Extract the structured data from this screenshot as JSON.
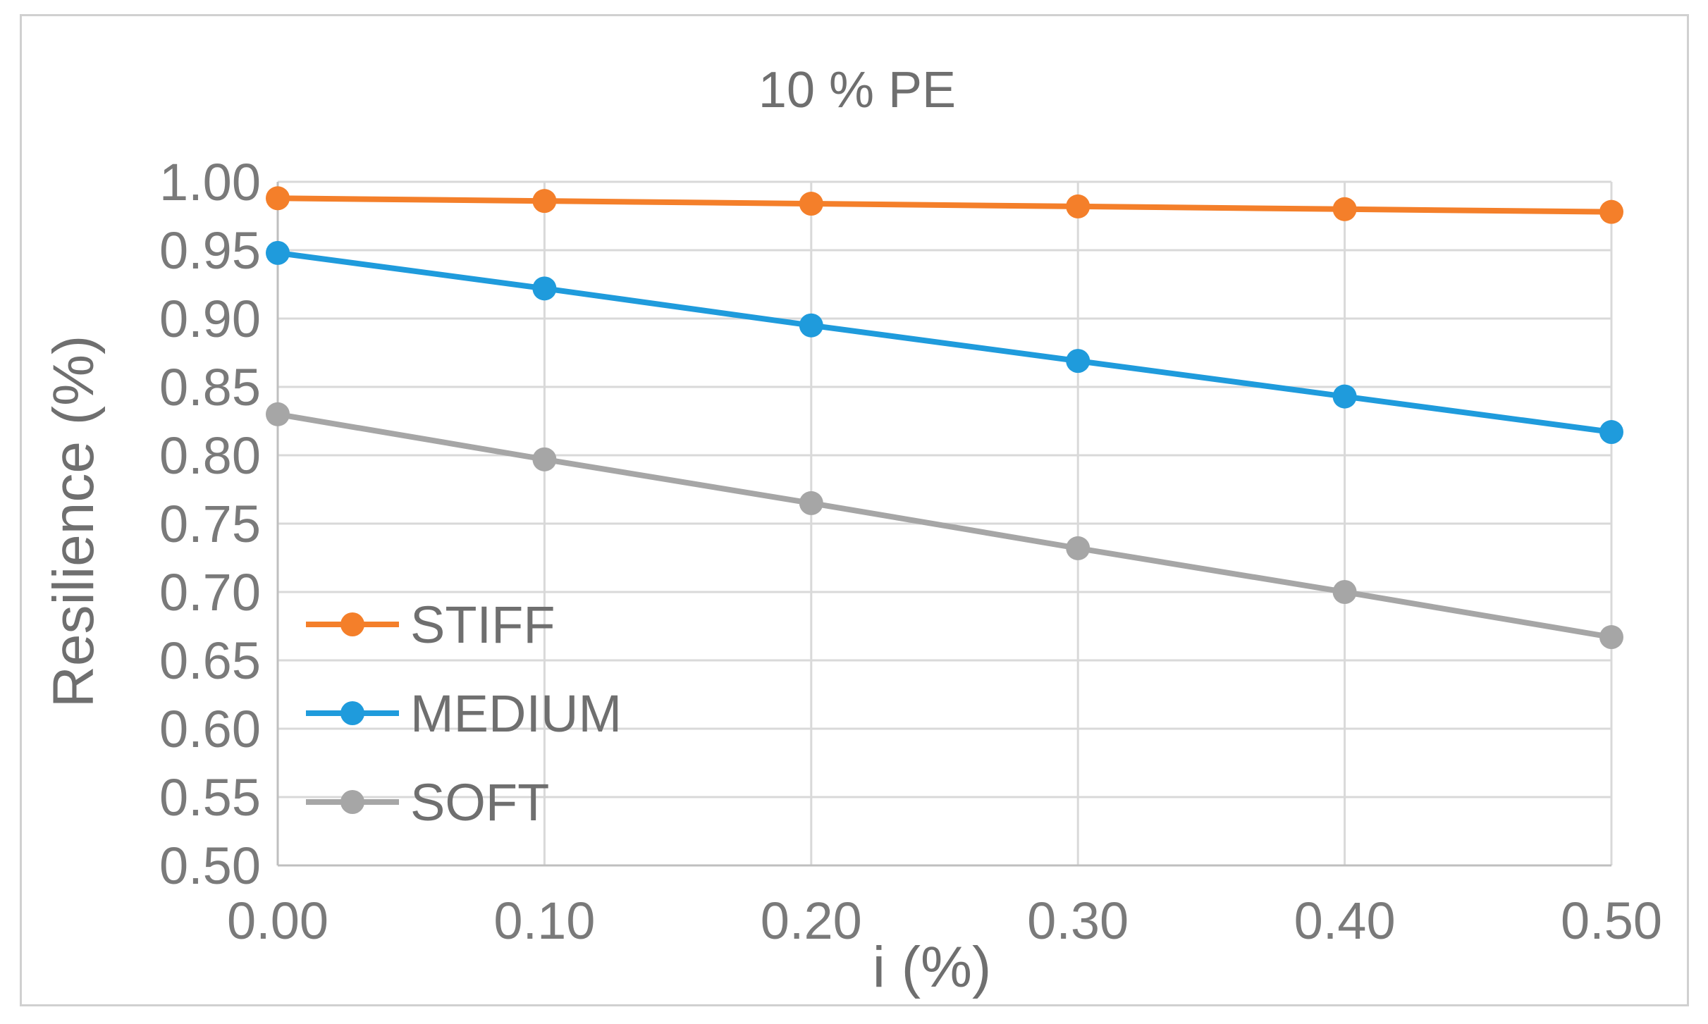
{
  "chart_data": {
    "type": "line",
    "title": "10 % PE",
    "xlabel": "i (%)",
    "ylabel": "Resilience (%)",
    "x": [
      0.0,
      0.1,
      0.2,
      0.3,
      0.4,
      0.5
    ],
    "x_tick_labels": [
      "0.00",
      "0.10",
      "0.20",
      "0.30",
      "0.40",
      "0.50"
    ],
    "xlim": [
      0.0,
      0.5
    ],
    "ylim": [
      0.5,
      1.0
    ],
    "y_ticks": [
      0.5,
      0.55,
      0.6,
      0.65,
      0.7,
      0.75,
      0.8,
      0.85,
      0.9,
      0.95,
      1.0
    ],
    "y_tick_labels": [
      "0.50",
      "0.55",
      "0.60",
      "0.65",
      "0.70",
      "0.75",
      "0.80",
      "0.85",
      "0.90",
      "0.95",
      "1.00"
    ],
    "grid": true,
    "legend_position": "left-center",
    "series": [
      {
        "name": "STIFF",
        "color": "#f47f2a",
        "values": [
          0.988,
          0.986,
          0.984,
          0.982,
          0.98,
          0.978
        ]
      },
      {
        "name": "MEDIUM",
        "color": "#1f9bdc",
        "values": [
          0.948,
          0.922,
          0.895,
          0.869,
          0.843,
          0.817
        ]
      },
      {
        "name": "SOFT",
        "color": "#a6a6a6",
        "values": [
          0.83,
          0.797,
          0.765,
          0.732,
          0.7,
          0.667
        ]
      }
    ]
  }
}
